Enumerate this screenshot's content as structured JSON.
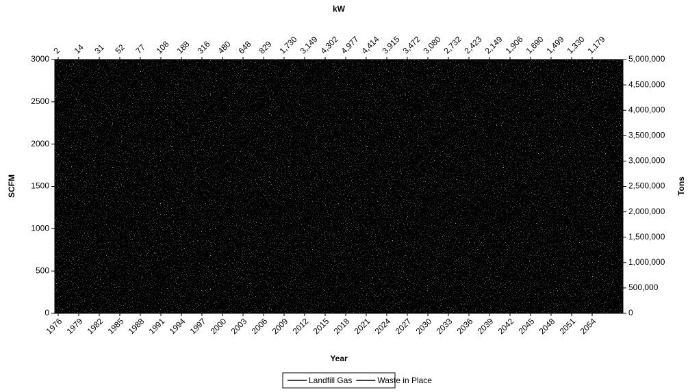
{
  "chart_data": {
    "type": "line",
    "x_label": "Year",
    "y_label": "SCFM",
    "y2_label": "Tons",
    "x2_label": "kW",
    "xlim": [
      1975.5,
      2058.5
    ],
    "xticks": [
      1976,
      1979,
      1982,
      1985,
      1988,
      1991,
      1994,
      1997,
      2000,
      2003,
      2006,
      2009,
      2012,
      2015,
      2018,
      2021,
      2024,
      2027,
      2030,
      2033,
      2036,
      2039,
      2042,
      2045,
      2048,
      2051,
      2054
    ],
    "x2ticks": [
      2,
      14,
      31,
      52,
      77,
      108,
      188,
      316,
      480,
      648,
      829,
      {
        "value": 1730,
        "label": "1,730"
      },
      {
        "value": 3149,
        "label": "3,149"
      },
      {
        "value": 4302,
        "label": "4,302"
      },
      {
        "value": 4977,
        "label": "4,977"
      },
      {
        "value": 4414,
        "label": "4,414"
      },
      {
        "value": 3915,
        "label": "3,915"
      },
      {
        "value": 3472,
        "label": "3,472"
      },
      {
        "value": 3080,
        "label": "3,080"
      },
      {
        "value": 2732,
        "label": "2,732"
      },
      {
        "value": 2423,
        "label": "2,423"
      },
      {
        "value": 2149,
        "label": "2,149"
      },
      {
        "value": 1906,
        "label": "1,906"
      },
      {
        "value": 1690,
        "label": "1,690"
      },
      {
        "value": 1499,
        "label": "1,499"
      },
      {
        "value": 1330,
        "label": "1,330"
      },
      {
        "value": 1179,
        "label": "1,179"
      }
    ],
    "ylim": [
      0,
      3000
    ],
    "yticks": [
      0,
      500,
      1000,
      1500,
      2000,
      2500,
      3000
    ],
    "y2lim": [
      0,
      5000000
    ],
    "y2ticks": [
      0,
      {
        "value": 500000,
        "label": "500,000"
      },
      {
        "value": 1000000,
        "label": "1,000,000"
      },
      {
        "value": 1500000,
        "label": "1,500,000"
      },
      {
        "value": 2000000,
        "label": "2,000,000"
      },
      {
        "value": 2500000,
        "label": "2,500,000"
      },
      {
        "value": 3000000,
        "label": "3,000,000"
      },
      {
        "value": 3500000,
        "label": "3,500,000"
      },
      {
        "value": 4000000,
        "label": "4,000,000"
      },
      {
        "value": 4500000,
        "label": "4,500,000"
      },
      {
        "value": 5000000,
        "label": "5,000,000"
      }
    ],
    "series": [
      {
        "name": "Landfill Gas",
        "color": "#000000"
      },
      {
        "name": "Waste in Place",
        "color": "#000000"
      }
    ]
  }
}
